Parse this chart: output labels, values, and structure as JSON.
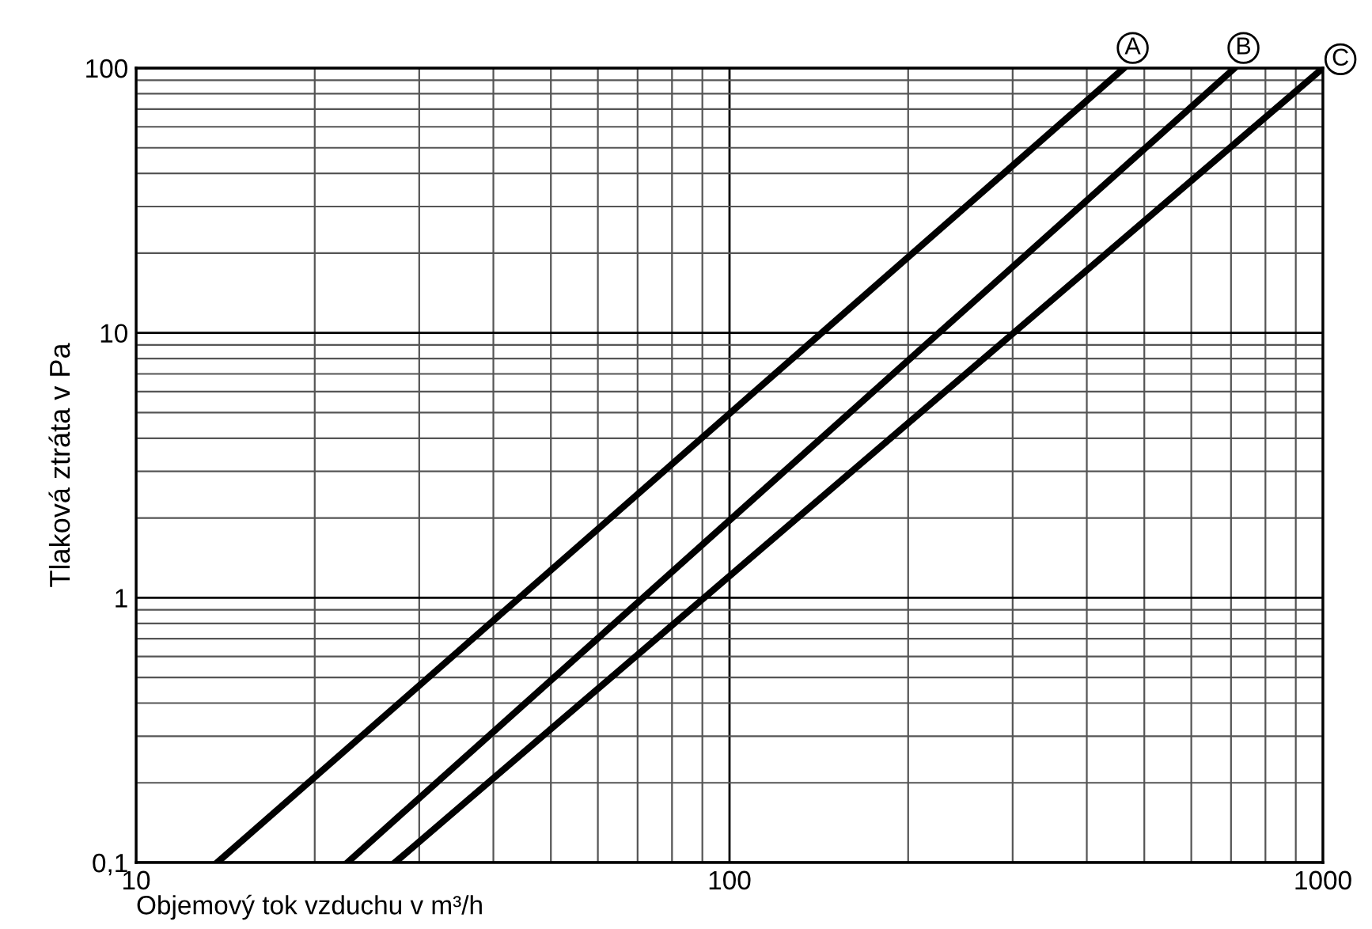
{
  "chart_data": {
    "type": "line",
    "xlabel": "Objemový tok vzduchu v m³/h",
    "ylabel": "Tlaková ztráta v Pa",
    "log": "xy",
    "grid": true,
    "legend": false,
    "marker": "none",
    "line_style": "solid",
    "xlim": [
      10,
      1000
    ],
    "ylim": [
      0.1,
      100
    ],
    "xticks": [
      10,
      100,
      1000
    ],
    "yticks": [
      {
        "value": 0.1,
        "label": "0,1"
      },
      1,
      10,
      100
    ],
    "series": [
      {
        "name": "A",
        "color": "#000000",
        "x": [
          13.7,
          462
        ],
        "values": [
          0.1,
          100
        ]
      },
      {
        "name": "B",
        "color": "#000000",
        "x": [
          22.7,
          710
        ],
        "values": [
          0.1,
          100
        ]
      },
      {
        "name": "C",
        "color": "#000000",
        "x": [
          27.3,
          1000
        ],
        "values": [
          0.1,
          100
        ]
      }
    ]
  }
}
